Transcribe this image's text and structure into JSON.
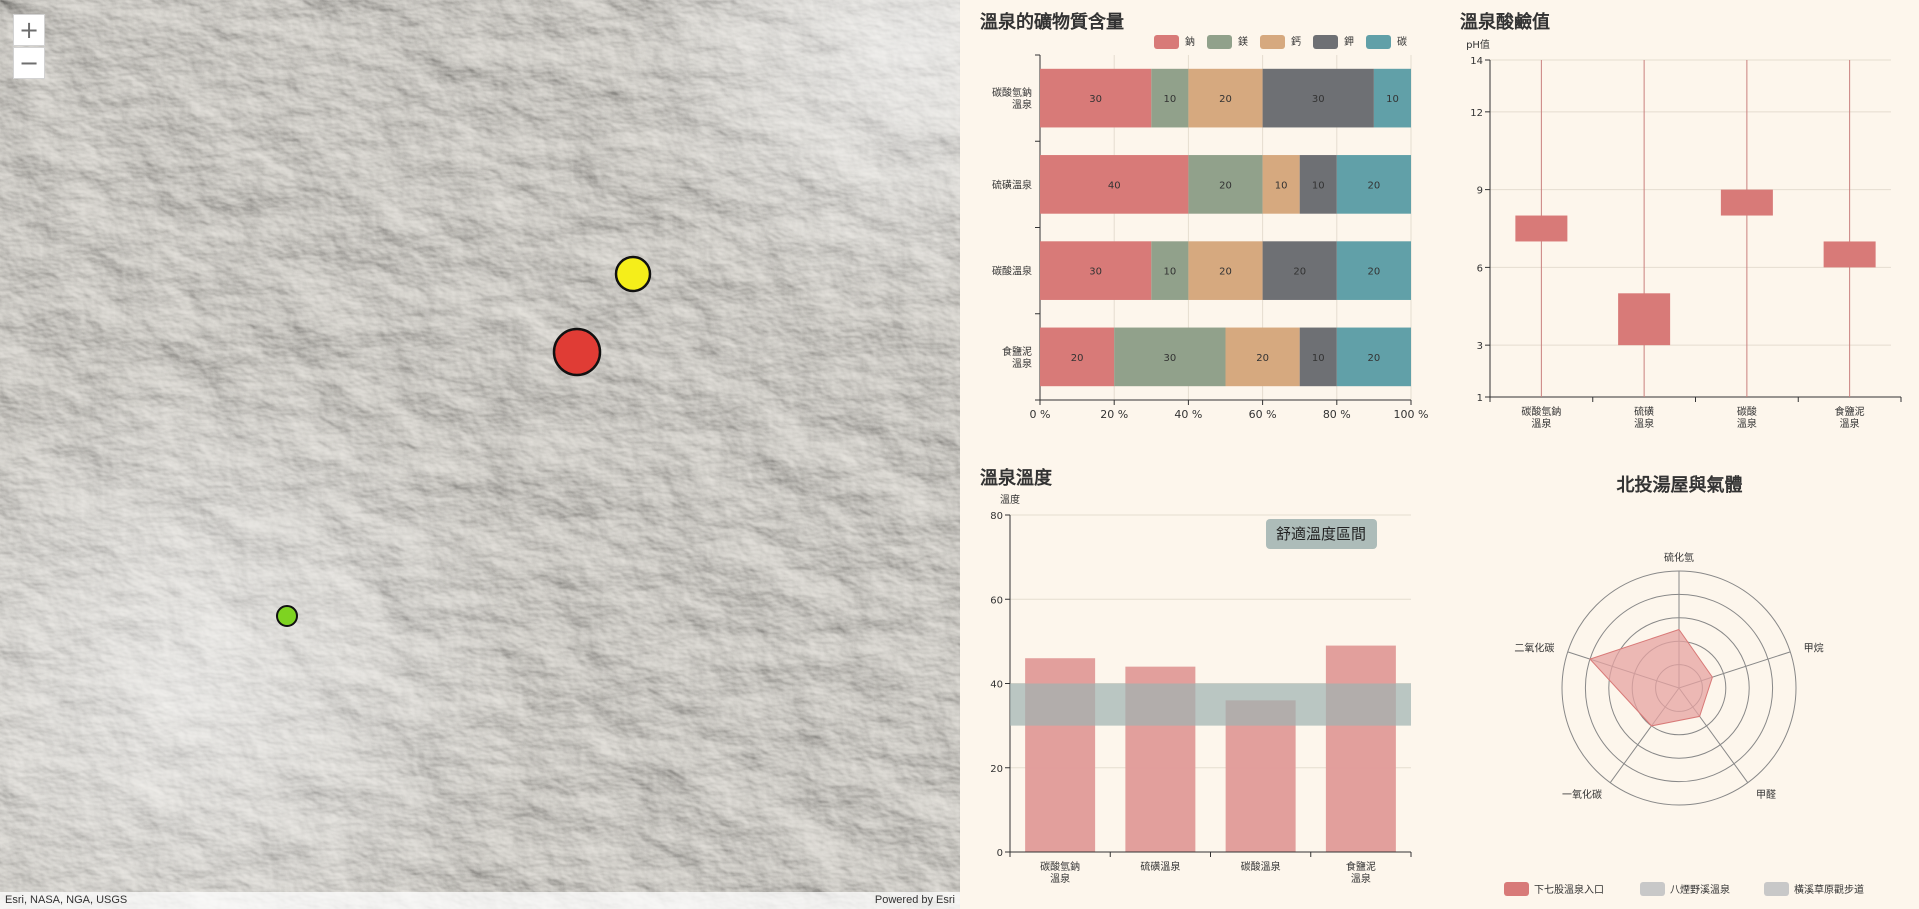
{
  "map": {
    "zoom_in": "+",
    "zoom_out": "−",
    "attribution_left": "Esri, NASA, NGA, USGS",
    "attribution_right": "Powered by Esri",
    "markers": [
      {
        "name": "red",
        "color": "#e03c35"
      },
      {
        "name": "yellow",
        "color": "#f5ee1a"
      },
      {
        "name": "green",
        "color": "#7ed321"
      }
    ]
  },
  "minerals": {
    "title": "溫泉的礦物質含量",
    "legend": [
      {
        "name": "鈉",
        "color": "#d87a78"
      },
      {
        "name": "鎂",
        "color": "#91a18b"
      },
      {
        "name": "鈣",
        "color": "#d6a97f"
      },
      {
        "name": "鉀",
        "color": "#6e7074"
      },
      {
        "name": "碳",
        "color": "#61a0a8"
      }
    ]
  },
  "ph": {
    "title": "溫泉酸鹼值",
    "y_unit": "pH值"
  },
  "temperature": {
    "title": "溫泉溫度",
    "y_unit": "溫度",
    "band_label": "舒適溫度區間"
  },
  "radar": {
    "title": "北投湯屋與氣體",
    "legend": [
      {
        "name": "下七股溫泉入口",
        "color": "#d87a78",
        "active": true
      },
      {
        "name": "八煙野溪溫泉",
        "color": "#c8c8c8",
        "active": false
      },
      {
        "name": "橫溪草原觀步道",
        "color": "#c8c8c8",
        "active": false
      }
    ]
  },
  "chart_data": [
    {
      "type": "bar",
      "orientation": "horizontal-stacked-percent",
      "title": "溫泉的礦物質含量",
      "categories": [
        [
          "碳酸氫鈉",
          "溫泉"
        ],
        [
          "硫磺溫泉"
        ],
        [
          "碳酸溫泉"
        ],
        [
          "食鹽泥",
          "溫泉"
        ]
      ],
      "series": [
        {
          "name": "鈉",
          "values": [
            30,
            40,
            30,
            20
          ]
        },
        {
          "name": "鎂",
          "values": [
            10,
            20,
            10,
            30
          ]
        },
        {
          "name": "鈣",
          "values": [
            20,
            10,
            20,
            20
          ]
        },
        {
          "name": "鉀",
          "values": [
            30,
            10,
            20,
            10
          ]
        },
        {
          "name": "碳",
          "values": [
            10,
            20,
            20,
            20
          ]
        }
      ],
      "xticks": [
        "0 %",
        "20 %",
        "40 %",
        "60 %",
        "80 %",
        "100 %"
      ],
      "xlim": [
        0,
        100
      ],
      "legend_position": "top-right"
    },
    {
      "type": "bar",
      "orientation": "floating-range",
      "title": "溫泉酸鹼值",
      "ylabel": "pH值",
      "categories": [
        [
          "碳酸氫鈉",
          "溫泉"
        ],
        [
          "硫磺",
          "溫泉"
        ],
        [
          "碳酸",
          "溫泉"
        ],
        [
          "食鹽泥",
          "溫泉"
        ]
      ],
      "ranges": [
        [
          7,
          8
        ],
        [
          3,
          5
        ],
        [
          8,
          9
        ],
        [
          6,
          7
        ]
      ],
      "yticks": [
        1,
        3,
        6,
        9,
        12,
        14
      ],
      "ylim": [
        1,
        14
      ],
      "grid": true
    },
    {
      "type": "bar",
      "title": "溫泉溫度",
      "ylabel": "溫度",
      "categories": [
        [
          "碳酸氫鈉",
          "溫泉"
        ],
        [
          "硫磺溫泉"
        ],
        [
          "碳酸溫泉"
        ],
        [
          "食鹽泥",
          "溫泉"
        ]
      ],
      "values": [
        46,
        44,
        36,
        49
      ],
      "band": {
        "from": 30,
        "to": 40,
        "label": "舒適溫度區間"
      },
      "yticks": [
        0,
        20,
        40,
        60,
        80
      ],
      "ylim": [
        0,
        80
      ],
      "grid": true
    },
    {
      "type": "radar",
      "title": "北投湯屋與氣體",
      "indicators": [
        "硫化氫",
        "甲烷",
        "甲醛",
        "一氧化碳",
        "二氧化碳"
      ],
      "series": [
        {
          "name": "下七股溫泉入口",
          "values": [
            0.5,
            0.3,
            0.3,
            0.4,
            0.8
          ]
        }
      ],
      "max": 1,
      "legend_position": "bottom"
    }
  ]
}
